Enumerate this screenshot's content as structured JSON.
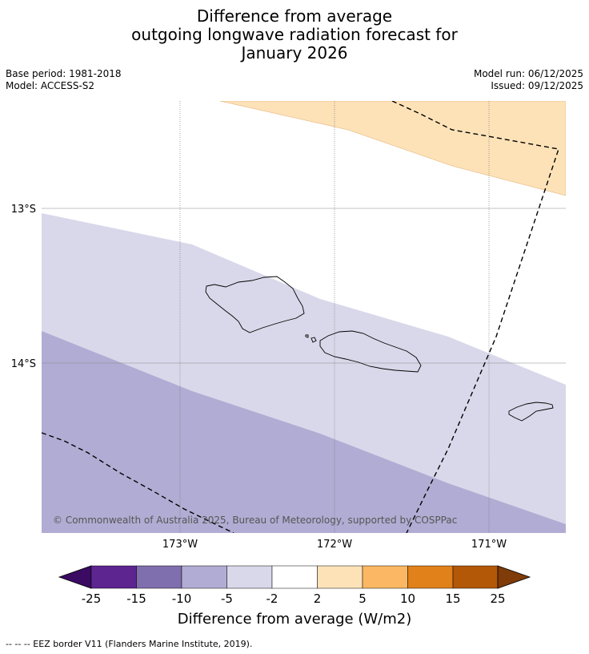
{
  "title_lines": [
    "Difference from average",
    "outgoing longwave radiation forecast for",
    "January 2026"
  ],
  "meta": {
    "base_period": "Base period: 1981-2018",
    "model": "Model: ACCESS-S2",
    "model_run": "Model run: 06/12/2025",
    "issued": "Issued: 09/12/2025"
  },
  "map": {
    "lat_labels": [
      "13°S",
      "14°S"
    ],
    "lon_labels": [
      "173°W",
      "172°W",
      "171°W"
    ],
    "copyright": "© Commonwealth of Australia 2025, Bureau of Meteorology, supported by COSPPac",
    "fill_colors": {
      "anomaly_pos_2_5": "#fde2b8",
      "anomaly_neg_2_5": "#d8d8ea",
      "anomaly_neg_5_10": "#b1acd3"
    }
  },
  "colorbar": {
    "ticks": [
      "-25",
      "-15",
      "-10",
      "-5",
      "-2",
      "2",
      "5",
      "10",
      "15",
      "25"
    ],
    "colors": [
      "#3b0a63",
      "#5d2590",
      "#7f6fae",
      "#b1acd3",
      "#d8d8ea",
      "#ffffff",
      "#fde2b8",
      "#fbb763",
      "#e0811a",
      "#b35806",
      "#7f3b08"
    ],
    "label": "Difference from average (W/m2)"
  },
  "footer": "--  --  -- EEZ border V11 (Flanders Marine Institute, 2019)."
}
